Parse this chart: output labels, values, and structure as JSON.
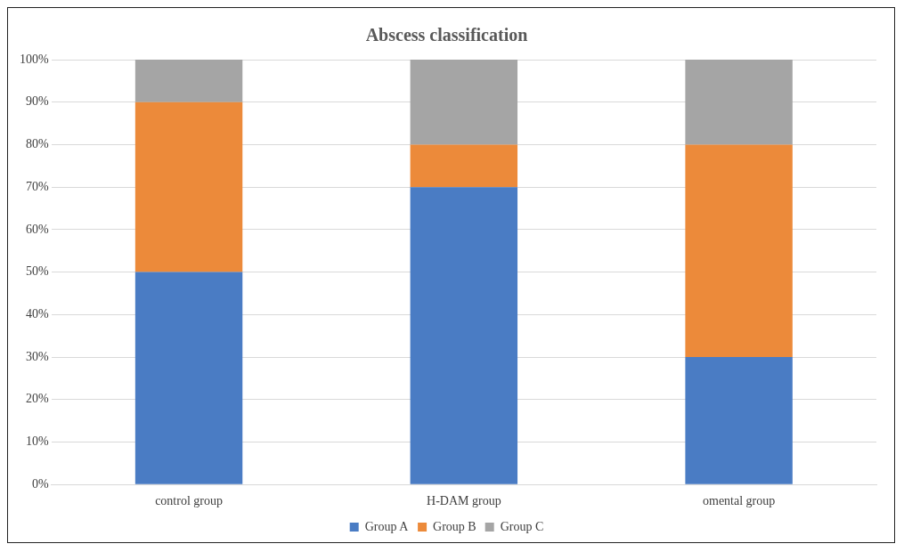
{
  "chart_data": {
    "type": "bar",
    "title": "Abscess classification",
    "categories": [
      "control group",
      "H-DAM group",
      "omental group"
    ],
    "stacked": true,
    "series": [
      {
        "name": "Group A",
        "color": "#4a7cc4",
        "values": [
          50,
          70,
          30
        ]
      },
      {
        "name": "Group B",
        "color": "#ec8a3a",
        "values": [
          40,
          10,
          50
        ]
      },
      {
        "name": "Group C",
        "color": "#a5a5a5",
        "values": [
          10,
          20,
          20
        ]
      }
    ],
    "ylim": [
      0,
      100
    ],
    "yticks": [
      {
        "value": 0,
        "label": "0%"
      },
      {
        "value": 10,
        "label": "10%"
      },
      {
        "value": 20,
        "label": "20%"
      },
      {
        "value": 30,
        "label": "30%"
      },
      {
        "value": 40,
        "label": "40%"
      },
      {
        "value": 50,
        "label": "50%"
      },
      {
        "value": 60,
        "label": "60%"
      },
      {
        "value": 70,
        "label": "70%"
      },
      {
        "value": 80,
        "label": "80%"
      },
      {
        "value": 90,
        "label": "90%"
      },
      {
        "value": 100,
        "label": "100%"
      }
    ],
    "grid": "y",
    "legend": "bottom"
  }
}
